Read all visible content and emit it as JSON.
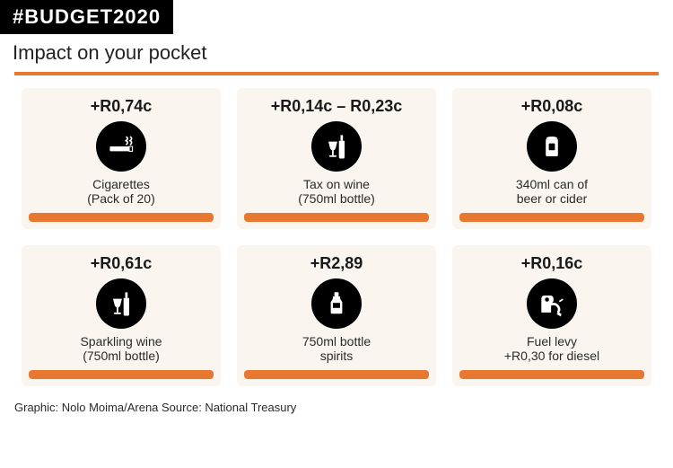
{
  "header": {
    "tag": "#BUDGET2020",
    "tag_bg": "#000000",
    "tag_color": "#ffffff",
    "tag_fontsize": 22,
    "subtitle": "Impact on your pocket",
    "subtitle_fontsize": 22,
    "subtitle_color": "#222222",
    "divider_color": "#e8772f"
  },
  "layout": {
    "card_bg": "#faf6ef",
    "card_underbar": "#e8772f",
    "icon_bg": "#000000",
    "icon_fg": "#ffffff",
    "amount_fontsize": 18,
    "amount_color": "#1a1a1a",
    "label_fontsize": 14,
    "label_color": "#2a2a2a"
  },
  "items": [
    {
      "amount": "+R0,74c",
      "label_line1": "Cigarettes",
      "label_line2": "(Pack of 20)",
      "icon": "cigarettes"
    },
    {
      "amount": "+R0,14c – R0,23c",
      "label_line1": "Tax on wine",
      "label_line2": "(750ml bottle)",
      "icon": "wine"
    },
    {
      "amount": "+R0,08c",
      "label_line1": "340ml can of",
      "label_line2": "beer or cider",
      "icon": "can"
    },
    {
      "amount": "+R0,61c",
      "label_line1": "Sparkling wine",
      "label_line2": "(750ml bottle)",
      "icon": "wine"
    },
    {
      "amount": "+R2,89",
      "label_line1": "750ml bottle",
      "label_line2": "spirits",
      "icon": "spirits"
    },
    {
      "amount": "+R0,16c",
      "label_line1": "Fuel levy",
      "label_line2": "+R0,30 for diesel",
      "icon": "fuel"
    }
  ],
  "credit": {
    "text": "Graphic: Nolo Moima/Arena Source: National Treasury",
    "fontsize": 13,
    "color": "#2a2a2a"
  },
  "icons": {
    "cigarettes": "<svg viewBox='0 0 40 40' width='36' height='36'><g fill='#ffffff'><rect x='6' y='20' width='24' height='6' rx='1'/><rect x='30' y='20' width='4' height='6' fill='#000' stroke='#fff' stroke-width='1.2'/><path d='M26 8 q4 2 0 5 q4 2 0 5' stroke='#fff' stroke-width='1.8' fill='none'/><path d='M31 8 q4 2 0 5 q4 2 0 5' stroke='#fff' stroke-width='1.8' fill='none'/></g></svg>",
    "wine": "<svg viewBox='0 0 40 40' width='36' height='36'><g fill='#ffffff'><path d='M10 14 h11 l-2 8 q-1 3 -3.5 3 t-3.5 -3 z'/><rect x='14.5' y='24' width='2' height='7'/><rect x='11' y='31' width='9' height='2' rx='1'/><rect x='25' y='6' width='3' height='7'/><path d='M23 13 h7 v20 q0 2 -2 2 h-3 q-2 0 -2 -2 z'/></g></svg>",
    "can": "<svg viewBox='0 0 40 40' width='34' height='34'><g fill='#ffffff'><path d='M13 9 h14 l1 3 v19 q0 2 -2 2 h-12 q-2 0 -2 -2 v-19 z'/><rect x='13' y='9' width='14' height='2' fill='#000' opacity='.3'/><ellipse cx='20' cy='9' rx='7' ry='2' fill='#fff'/><rect x='16' y='16' width='8' height='9' rx='1' fill='#000'/></g></svg>",
    "spirits": "<svg viewBox='0 0 40 40' width='32' height='36'><g fill='#ffffff'><rect x='17' y='4' width='6' height='6' rx='1'/><path d='M15 10 h10 v3 l3 5 v14 q0 2 -2 2 h-12 q-2 0 -2 -2 v-14 l3 -5 z'/><rect x='15' y='19' width='10' height='7' fill='#000'/></g></svg>",
    "fuel": "<svg viewBox='0 0 40 40' width='36' height='36'><g fill='#ffffff'><path d='M7 14 q0 -4 4 -4 h7 q4 0 4 4 v3 l-3 4 v10 h-12 z'/><circle cx='14' cy='15' r='2.5' fill='#000'/><path d='M19 21 q6 -2 9 3 q2 3 0 6' stroke='#fff' stroke-width='3' fill='none' stroke-linecap='round'/><path d='M28 30 l4 3 l-1 3 l-5 -3 z'/><path d='M30 17 l3 -2' stroke='#fff' stroke-width='2' stroke-linecap='round'/></g></svg>"
  }
}
